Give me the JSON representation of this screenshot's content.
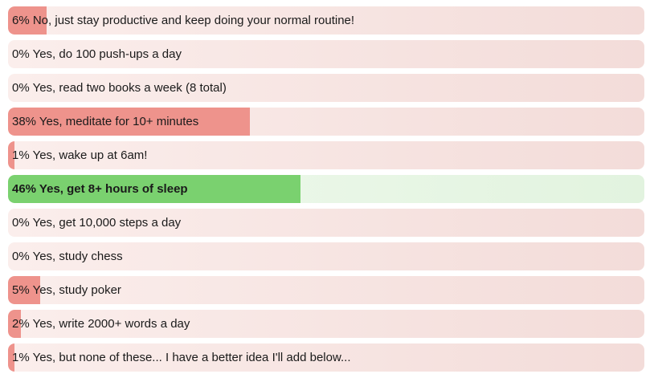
{
  "chart_data": {
    "type": "bar",
    "orientation": "horizontal",
    "title": "",
    "xlabel": "",
    "ylabel": "",
    "value_unit": "percent",
    "xlim": [
      0,
      100
    ],
    "grid": false,
    "legend": false,
    "categories": [
      "No, just stay productive and keep doing your normal routine!",
      "Yes, do 100 push-ups a day",
      "Yes, read two books a week (8 total)",
      "Yes, meditate for 10+ minutes",
      "Yes, wake up at 6am!",
      "Yes, get 8+ hours of sleep",
      "Yes, get 10,000 steps a day",
      "Yes, study chess",
      "Yes, study poker",
      "Yes, write 2000+ words a day",
      "Yes, but none of these... I have a better idea I'll add below..."
    ],
    "values": [
      6,
      0,
      0,
      38,
      1,
      46,
      0,
      0,
      5,
      2,
      1
    ],
    "labels": [
      "6% No, just stay productive and keep doing your normal routine!",
      "0% Yes, do 100 push-ups a day",
      "0% Yes, read two books a week (8 total)",
      "38% Yes, meditate for 10+ minutes",
      "1% Yes, wake up at 6am!",
      "46% Yes, get 8+ hours of sleep",
      "0% Yes, get 10,000 steps a day",
      "0% Yes, study chess",
      "5% Yes, study poker",
      "2% Yes, write 2000+ words a day",
      "1% Yes, but none of these... I have a better idea I'll add below..."
    ],
    "highlight_index": 5
  },
  "colors": {
    "bar_fill": "#ee938c",
    "bar_track_left": "#fbeeec",
    "bar_track_right": "#f3dcd9",
    "highlight_fill": "#7ad16f",
    "highlight_track_left": "#f0faee",
    "highlight_track_right": "#e2f3df",
    "text": "#1a1a1a"
  }
}
